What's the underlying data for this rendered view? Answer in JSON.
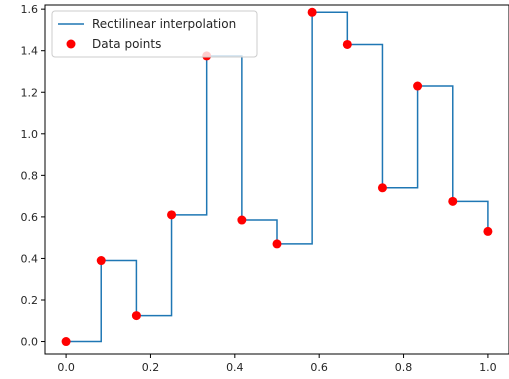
{
  "chart_data": {
    "type": "line",
    "title": "",
    "xlabel": "",
    "ylabel": "",
    "xlim": [
      -0.05,
      1.05
    ],
    "ylim": [
      -0.06,
      1.62
    ],
    "grid": false,
    "legend_position": "top-left",
    "x_ticks": [
      0.0,
      0.2,
      0.4,
      0.6,
      0.8,
      1.0
    ],
    "x_tick_labels": [
      "0.0",
      "0.2",
      "0.4",
      "0.6",
      "0.8",
      "1.0"
    ],
    "y_ticks": [
      0.0,
      0.2,
      0.4,
      0.6,
      0.8,
      1.0,
      1.2,
      1.4,
      1.6
    ],
    "y_tick_labels": [
      "0.0",
      "0.2",
      "0.4",
      "0.6",
      "0.8",
      "1.0",
      "1.2",
      "1.4",
      "1.6"
    ],
    "series": [
      {
        "name": "Rectilinear interpolation",
        "kind": "step",
        "color": "#1f77b4",
        "x": [
          0.0,
          0.0833,
          0.1667,
          0.25,
          0.3333,
          0.4167,
          0.5,
          0.5833,
          0.6667,
          0.75,
          0.8333,
          0.9167,
          1.0
        ],
        "y": [
          0.0,
          0.39,
          0.125,
          0.61,
          1.375,
          0.585,
          0.47,
          1.585,
          1.43,
          0.74,
          1.23,
          0.675,
          0.53
        ]
      },
      {
        "name": "Data points",
        "kind": "scatter",
        "color": "#ff0000",
        "x": [
          0.0,
          0.0833,
          0.1667,
          0.25,
          0.3333,
          0.4167,
          0.5,
          0.5833,
          0.6667,
          0.75,
          0.8333,
          0.9167,
          1.0
        ],
        "y": [
          0.0,
          0.39,
          0.125,
          0.61,
          1.375,
          0.585,
          0.47,
          1.585,
          1.43,
          0.74,
          1.23,
          0.675,
          0.53
        ]
      }
    ]
  }
}
